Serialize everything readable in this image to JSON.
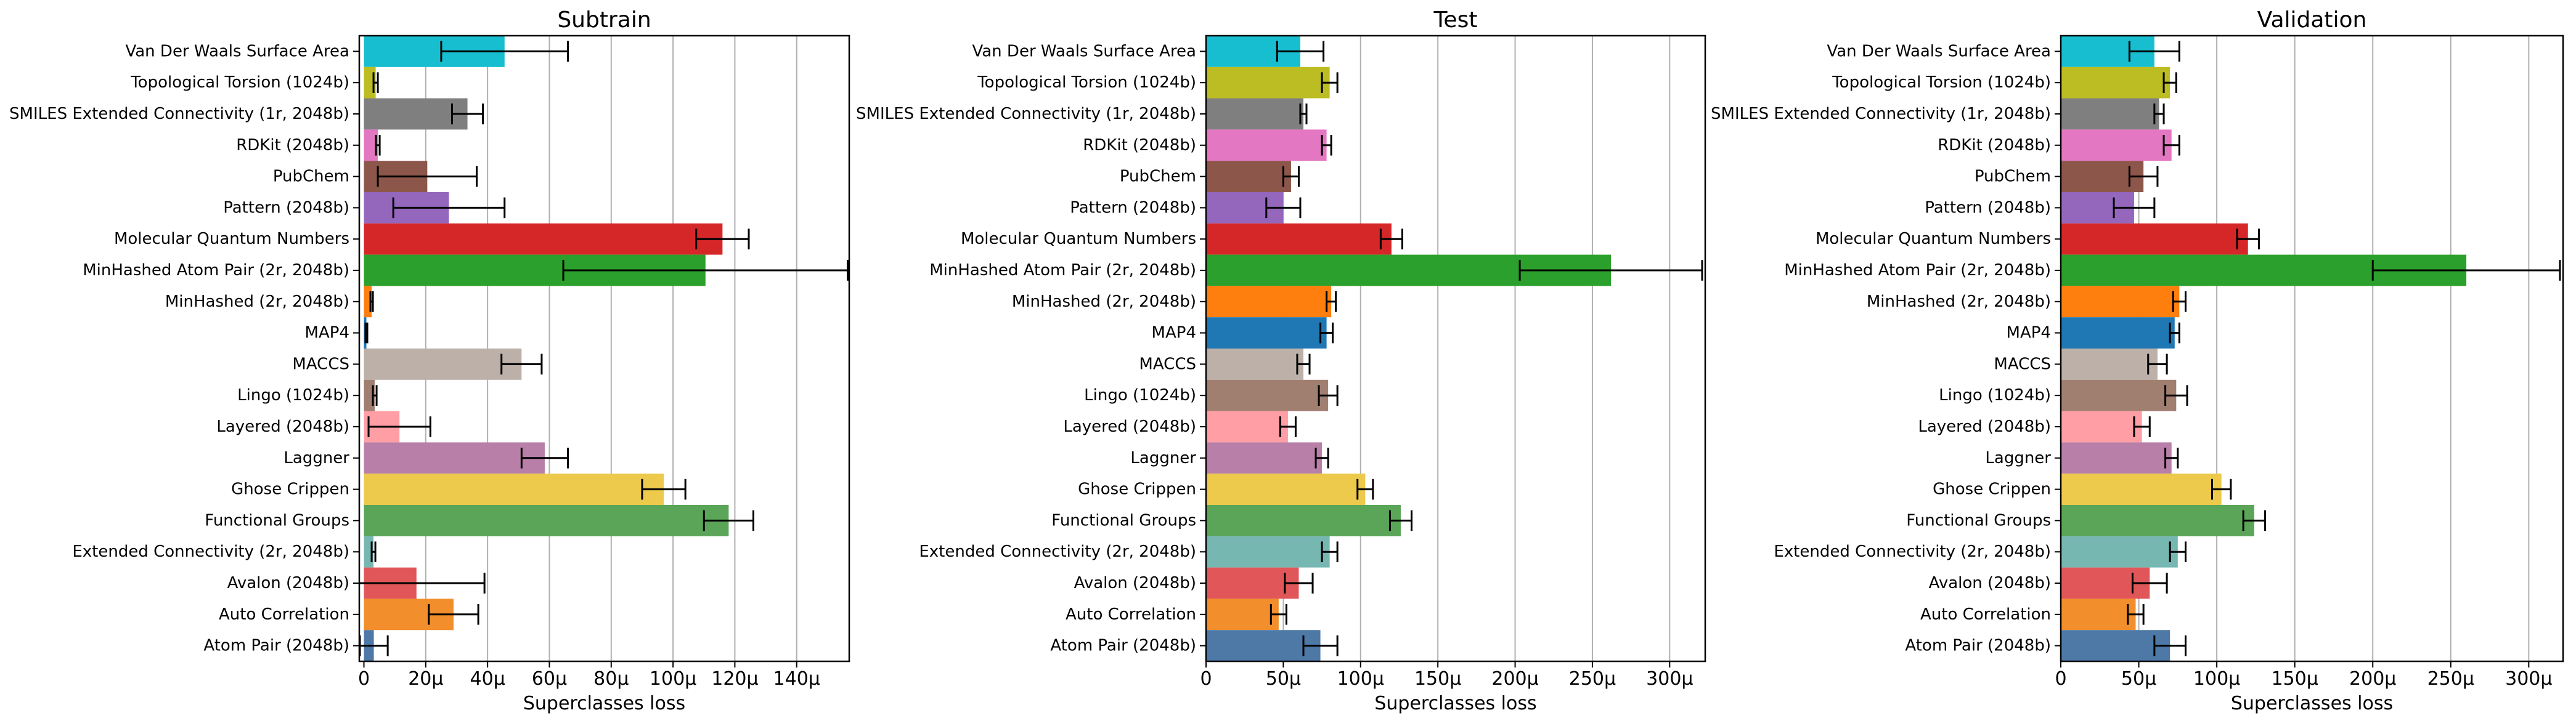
{
  "chart_data": [
    {
      "type": "bar",
      "orientation": "horizontal",
      "title": "Subtrain",
      "xlabel": "Superclasses loss",
      "ylabel": "",
      "xlim": [
        -1.5,
        157
      ],
      "xticks": [
        0,
        20,
        40,
        60,
        80,
        100,
        120,
        140
      ],
      "xtick_labels": [
        "0",
        "20μ",
        "40μ",
        "60μ",
        "80μ",
        "100μ",
        "120μ",
        "140μ"
      ],
      "grid": "vertical",
      "categories": [
        "Van Der Waals Surface Area",
        "Topological Torsion (1024b)",
        "SMILES Extended Connectivity (1r, 2048b)",
        "RDKit (2048b)",
        "PubChem",
        "Pattern (2048b)",
        "Molecular Quantum Numbers",
        "MinHashed Atom Pair (2r, 2048b)",
        "MinHashed (2r, 2048b)",
        "MAP4",
        "MACCS",
        "Lingo (1024b)",
        "Layered (2048b)",
        "Laggner",
        "Ghose Crippen",
        "Functional Groups",
        "Extended Connectivity (2r, 2048b)",
        "Avalon (2048b)",
        "Auto Correlation",
        "Atom Pair (2048b)"
      ],
      "values": [
        45.5,
        3.8,
        33.5,
        4.5,
        20.5,
        27.5,
        116,
        110.5,
        2.5,
        0.8,
        51,
        3.5,
        11.5,
        58.5,
        97,
        118,
        3.1,
        17,
        29,
        3.2
      ],
      "errors": [
        20.5,
        0.7,
        5,
        0.6,
        16,
        18,
        8.5,
        46,
        0.4,
        0.3,
        6.5,
        0.6,
        10,
        7.5,
        7,
        8,
        0.6,
        22,
        8,
        4.5
      ]
    },
    {
      "type": "bar",
      "orientation": "horizontal",
      "title": "Test",
      "xlabel": "Superclasses loss",
      "ylabel": "",
      "xlim": [
        0,
        323
      ],
      "xticks": [
        0,
        50,
        100,
        150,
        200,
        250,
        300
      ],
      "xtick_labels": [
        "0",
        "50μ",
        "100μ",
        "150μ",
        "200μ",
        "250μ",
        "300μ"
      ],
      "grid": "vertical",
      "categories": [
        "Van Der Waals Surface Area",
        "Topological Torsion (1024b)",
        "SMILES Extended Connectivity (1r, 2048b)",
        "RDKit (2048b)",
        "PubChem",
        "Pattern (2048b)",
        "Molecular Quantum Numbers",
        "MinHashed Atom Pair (2r, 2048b)",
        "MinHashed (2r, 2048b)",
        "MAP4",
        "MACCS",
        "Lingo (1024b)",
        "Layered (2048b)",
        "Laggner",
        "Ghose Crippen",
        "Functional Groups",
        "Extended Connectivity (2r, 2048b)",
        "Avalon (2048b)",
        "Auto Correlation",
        "Atom Pair (2048b)"
      ],
      "values": [
        61,
        80,
        63,
        78,
        55,
        50,
        120,
        262,
        81,
        78,
        63,
        79,
        53,
        75,
        103,
        126,
        80,
        60,
        47,
        74
      ],
      "errors": [
        15,
        5,
        2,
        3,
        5,
        11,
        7,
        59,
        3,
        4,
        4,
        6,
        5,
        4,
        5,
        7,
        5,
        9,
        5,
        11
      ]
    },
    {
      "type": "bar",
      "orientation": "horizontal",
      "title": "Validation",
      "xlabel": "Superclasses loss",
      "ylabel": "",
      "xlim": [
        0,
        322
      ],
      "xticks": [
        0,
        50,
        100,
        150,
        200,
        250,
        300
      ],
      "xtick_labels": [
        "0",
        "50μ",
        "100μ",
        "150μ",
        "200μ",
        "250μ",
        "300μ"
      ],
      "grid": "vertical",
      "categories": [
        "Van Der Waals Surface Area",
        "Topological Torsion (1024b)",
        "SMILES Extended Connectivity (1r, 2048b)",
        "RDKit (2048b)",
        "PubChem",
        "Pattern (2048b)",
        "Molecular Quantum Numbers",
        "MinHashed Atom Pair (2r, 2048b)",
        "MinHashed (2r, 2048b)",
        "MAP4",
        "MACCS",
        "Lingo (1024b)",
        "Layered (2048b)",
        "Laggner",
        "Ghose Crippen",
        "Functional Groups",
        "Extended Connectivity (2r, 2048b)",
        "Avalon (2048b)",
        "Auto Correlation",
        "Atom Pair (2048b)"
      ],
      "values": [
        60,
        70,
        63,
        71,
        53,
        47,
        120,
        260,
        76,
        73,
        62,
        74,
        52,
        71,
        103,
        124,
        75,
        57,
        48,
        70
      ],
      "errors": [
        16,
        4,
        3,
        5,
        9,
        13,
        7,
        60,
        4,
        3,
        6,
        7,
        5,
        4,
        6,
        7,
        5,
        11,
        5,
        10
      ]
    }
  ],
  "colors": [
    "#17becf",
    "#bcbd22",
    "#7f7f7f",
    "#e377c2",
    "#8c564b",
    "#9467bd",
    "#d62728",
    "#2ca02c",
    "#ff7f0e",
    "#1f77b4",
    "#bcb0a8",
    "#a17f70",
    "#ff9ea5",
    "#b880a8",
    "#edc94c",
    "#5aa557",
    "#76b7b2",
    "#e15759",
    "#f28e2b",
    "#4e79a7"
  ]
}
